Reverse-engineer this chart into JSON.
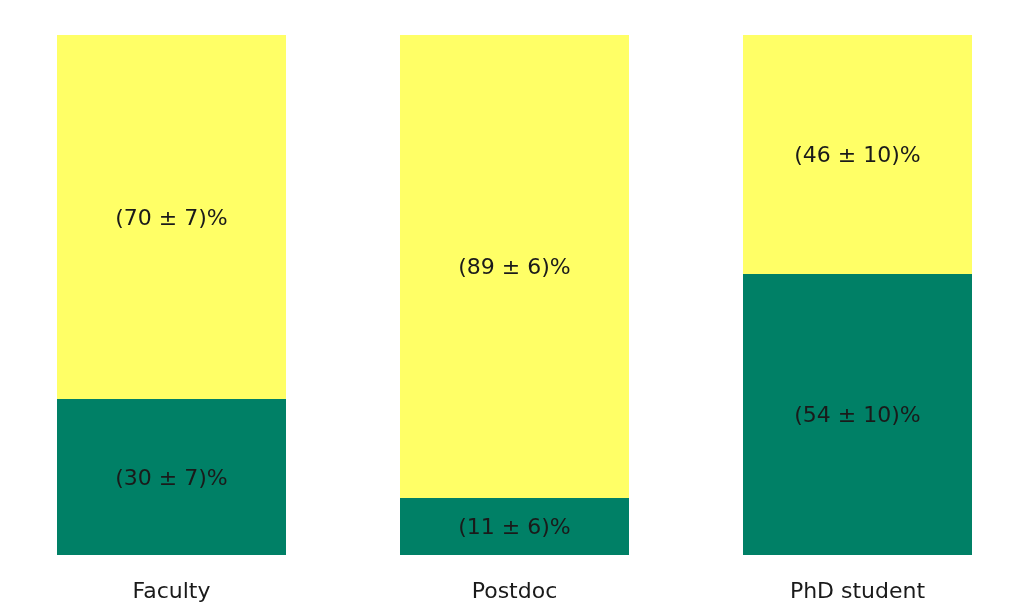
{
  "chart_data": {
    "type": "bar",
    "stacked": true,
    "categories": [
      "Faculty",
      "Postdoc",
      "PhD student"
    ],
    "series": [
      {
        "color": "#008066",
        "values": [
          30,
          11,
          54
        ],
        "value_labels": [
          "(30 ± 7)%",
          "(11 ± 6)%",
          "(54 ± 10)%"
        ]
      },
      {
        "color": "#ffff66",
        "values": [
          70,
          89,
          46
        ],
        "value_labels": [
          "(70 ± 7)%",
          "(89 ± 6)%",
          "(46 ± 10)%"
        ]
      }
    ],
    "ylim": [
      0,
      100
    ],
    "tick_labels": "x"
  }
}
